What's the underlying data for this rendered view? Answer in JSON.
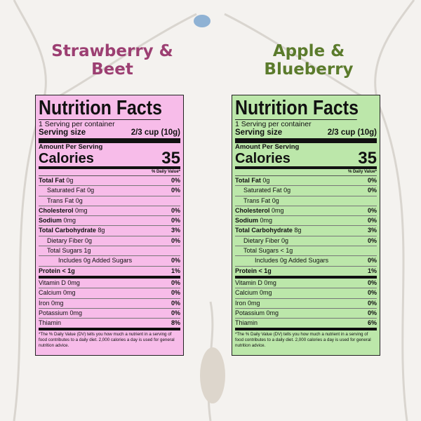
{
  "panels": [
    {
      "title": "Strawberry & Beet",
      "title_color": "#9c3f72",
      "label_color": "#f7bce9",
      "label": {
        "heading": "Nutrition Facts",
        "servings": "1 Serving per container",
        "serving_size_label": "Serving size",
        "serving_size": "2/3 cup (10g)",
        "amount_per_serving": "Amount Per Serving",
        "calories_label": "Calories",
        "calories": "35",
        "dv_header": "% Daily Value*",
        "rows": [
          {
            "name": "Total Fat",
            "amount": "0g",
            "dv": "0%",
            "style": "bold"
          },
          {
            "name": "Saturated Fat",
            "amount": "0g",
            "dv": "0%",
            "style": "sub"
          },
          {
            "name": "Trans Fat",
            "amount": "0g",
            "style": "sub"
          },
          {
            "name": "Cholesterol",
            "amount": "0mg",
            "dv": "0%",
            "style": "bold"
          },
          {
            "name": "Sodium",
            "amount": "0mg",
            "dv": "0%",
            "style": "bold"
          },
          {
            "name": "Total Carbohydrate",
            "amount": "8g",
            "dv": "3%",
            "style": "bold"
          },
          {
            "name": "Dietary Fiber",
            "amount": "0g",
            "dv": "0%",
            "style": "sub"
          },
          {
            "name": "Total Sugars",
            "amount": "1g",
            "style": "sub"
          },
          {
            "name": "Includes 0g Added Sugars",
            "dv": "0%",
            "style": "sub2"
          },
          {
            "name": "Protein < 1g",
            "dv": "1%",
            "style": "bold-end"
          },
          {
            "name": "Vitamin D",
            "amount": "0mg",
            "dv": "0%",
            "style": "plain"
          },
          {
            "name": "Calcium",
            "amount": "0mg",
            "dv": "0%",
            "style": "plain"
          },
          {
            "name": "Iron",
            "amount": "0mg",
            "dv": "0%",
            "style": "plain"
          },
          {
            "name": "Potassium",
            "amount": "0mg",
            "dv": "0%",
            "style": "plain"
          },
          {
            "name": "Thiamin",
            "dv": "8%",
            "style": "plain-end"
          }
        ],
        "footnote": "*The % Daily Value (DV) tells you how much a nutrient in a serving of food contributes to a daily diet. 2,000 calories a day is used for general nutrition advice."
      }
    },
    {
      "title": "Apple & Blueberry",
      "title_color": "#5b7b2c",
      "label_color": "#bce7aa",
      "label": {
        "heading": "Nutrition Facts",
        "servings": "1 Serving per container",
        "serving_size_label": "Serving size",
        "serving_size": "2/3 cup (10g)",
        "amount_per_serving": "Amount Per Serving",
        "calories_label": "Calories",
        "calories": "35",
        "dv_header": "% Daily Value*",
        "rows": [
          {
            "name": "Total Fat",
            "amount": "0g",
            "dv": "0%",
            "style": "bold"
          },
          {
            "name": "Saturated Fat",
            "amount": "0g",
            "dv": "0%",
            "style": "sub"
          },
          {
            "name": "Trans Fat",
            "amount": "0g",
            "style": "sub"
          },
          {
            "name": "Cholesterol",
            "amount": "0mg",
            "dv": "0%",
            "style": "bold"
          },
          {
            "name": "Sodium",
            "amount": "0mg",
            "dv": "0%",
            "style": "bold"
          },
          {
            "name": "Total Carbohydrate",
            "amount": "8g",
            "dv": "3%",
            "style": "bold"
          },
          {
            "name": "Dietary Fiber",
            "amount": "0g",
            "dv": "0%",
            "style": "sub"
          },
          {
            "name": "Total Sugars",
            "amount": "< 1g",
            "style": "sub"
          },
          {
            "name": "Includes 0g Added Sugars",
            "dv": "0%",
            "style": "sub2"
          },
          {
            "name": "Protein < 1g",
            "dv": "1%",
            "style": "bold-end"
          },
          {
            "name": "Vitamin D",
            "amount": "0mg",
            "dv": "0%",
            "style": "plain"
          },
          {
            "name": "Calcium",
            "amount": "0mg",
            "dv": "0%",
            "style": "plain"
          },
          {
            "name": "Iron",
            "amount": "0mg",
            "dv": "0%",
            "style": "plain"
          },
          {
            "name": "Potassium",
            "amount": "0mg",
            "dv": "0%",
            "style": "plain"
          },
          {
            "name": "Thiamin",
            "dv": "6%",
            "style": "plain-end"
          }
        ],
        "footnote": "*The % Daily Value (DV) tells you how much a nutrient in a serving of food contributes to a daily diet. 2,000 calories a day is used for general nutrition advice."
      }
    }
  ]
}
